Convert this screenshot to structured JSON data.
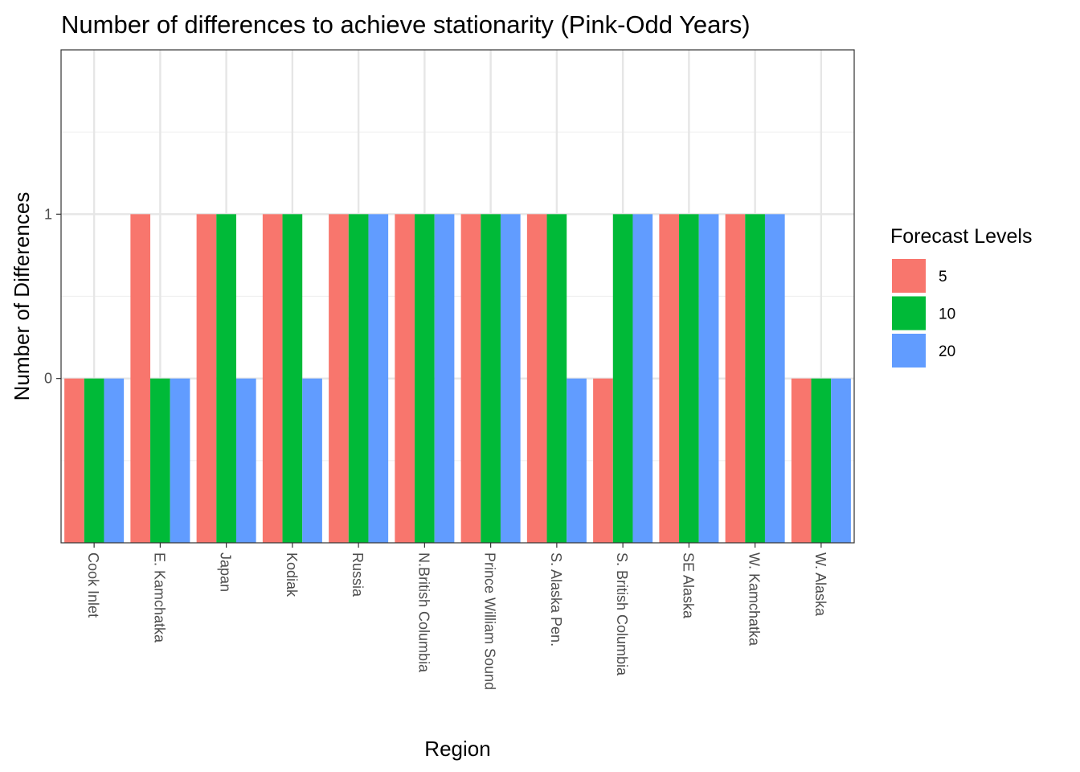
{
  "chart_data": {
    "type": "bar",
    "title": "Number of differences to achieve stationarity (Pink-Odd Years)",
    "xlabel": "Region",
    "ylabel": "Number of Differences",
    "categories": [
      "Cook Inlet",
      "E. Kamchatka",
      "Japan",
      "Kodiak",
      "Russia",
      "N.British Columbia",
      "Prince William Sound",
      "S. Alaska Pen.",
      "S. British Columbia",
      "SE Alaska",
      "W. Kamchatka",
      "W. Alaska"
    ],
    "ylim": [
      -1,
      2
    ],
    "y_ticks": [
      0,
      1
    ],
    "y_tick_labels": [
      "0",
      "1"
    ],
    "grid": true,
    "legend": {
      "title": "Forecast Levels",
      "position": "right"
    },
    "series": [
      {
        "name": "5",
        "color": "#F8766D",
        "values": [
          0,
          1,
          1,
          1,
          1,
          1,
          1,
          1,
          0,
          1,
          1,
          0
        ]
      },
      {
        "name": "10",
        "color": "#00BA38",
        "values": [
          0,
          0,
          1,
          1,
          1,
          1,
          1,
          1,
          1,
          1,
          1,
          0
        ]
      },
      {
        "name": "20",
        "color": "#619CFF",
        "values": [
          0,
          0,
          0,
          0,
          1,
          1,
          1,
          0,
          1,
          1,
          1,
          0
        ]
      }
    ]
  }
}
